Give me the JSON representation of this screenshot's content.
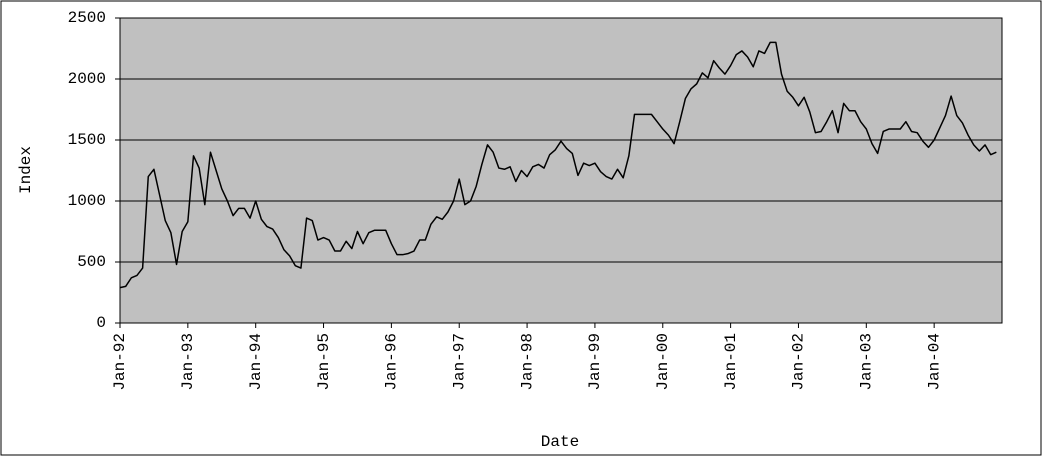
{
  "chart_data": {
    "type": "line",
    "x_label": "Date",
    "y_label": "Index",
    "categories": [
      "Jan-92",
      null,
      null,
      null,
      null,
      null,
      null,
      null,
      null,
      null,
      null,
      null,
      "Jan-93",
      null,
      null,
      null,
      null,
      null,
      null,
      null,
      null,
      null,
      null,
      null,
      "Jan-94",
      null,
      null,
      null,
      null,
      null,
      null,
      null,
      null,
      null,
      null,
      null,
      "Jan-95",
      null,
      null,
      null,
      null,
      null,
      null,
      null,
      null,
      null,
      null,
      null,
      "Jan-96",
      null,
      null,
      null,
      null,
      null,
      null,
      null,
      null,
      null,
      null,
      null,
      "Jan-97",
      null,
      null,
      null,
      null,
      null,
      null,
      null,
      null,
      null,
      null,
      null,
      "Jan-98",
      null,
      null,
      null,
      null,
      null,
      null,
      null,
      null,
      null,
      null,
      null,
      "Jan-99",
      null,
      null,
      null,
      null,
      null,
      null,
      null,
      null,
      null,
      null,
      null,
      "Jan-00",
      null,
      null,
      null,
      null,
      null,
      null,
      null,
      null,
      null,
      null,
      null,
      "Jan-01",
      null,
      null,
      null,
      null,
      null,
      null,
      null,
      null,
      null,
      null,
      null,
      "Jan-02",
      null,
      null,
      null,
      null,
      null,
      null,
      null,
      null,
      null,
      null,
      null,
      "Jan-03",
      null,
      null,
      null,
      null,
      null,
      null,
      null,
      null,
      null,
      null,
      null,
      "Jan-04",
      null,
      null,
      null,
      null,
      null,
      null,
      null,
      null,
      null,
      null,
      null
    ],
    "values": [
      290,
      300,
      370,
      390,
      450,
      1200,
      1260,
      1050,
      840,
      740,
      480,
      750,
      830,
      1370,
      1270,
      970,
      1400,
      1250,
      1100,
      1000,
      880,
      940,
      940,
      860,
      1000,
      850,
      790,
      770,
      700,
      600,
      550,
      470,
      450,
      860,
      840,
      680,
      700,
      680,
      590,
      590,
      670,
      610,
      750,
      650,
      740,
      760,
      760,
      760,
      650,
      560,
      560,
      570,
      590,
      680,
      680,
      810,
      870,
      850,
      910,
      1000,
      1180,
      970,
      1000,
      1120,
      1300,
      1460,
      1400,
      1270,
      1260,
      1280,
      1160,
      1250,
      1200,
      1280,
      1300,
      1270,
      1380,
      1420,
      1490,
      1430,
      1390,
      1210,
      1310,
      1290,
      1310,
      1240,
      1200,
      1180,
      1260,
      1190,
      1370,
      1710,
      1710,
      1710,
      1710,
      1650,
      1590,
      1540,
      1470,
      1650,
      1840,
      1920,
      1960,
      2050,
      2010,
      2150,
      2090,
      2040,
      2110,
      2200,
      2230,
      2180,
      2100,
      2230,
      2210,
      2300,
      2300,
      2040,
      1900,
      1850,
      1780,
      1850,
      1730,
      1560,
      1570,
      1650,
      1740,
      1560,
      1800,
      1740,
      1740,
      1650,
      1590,
      1470,
      1390,
      1570,
      1590,
      1590,
      1590,
      1650,
      1570,
      1560,
      1490,
      1440,
      1500,
      1600,
      1700,
      1860,
      1700,
      1640,
      1540,
      1460,
      1410,
      1460,
      1380,
      1400
    ],
    "color": "#000000",
    "plot_background": "#c0c0c0",
    "ylim": [
      0,
      2500
    ],
    "yticks": [
      0,
      500,
      1000,
      1500,
      2000,
      2500
    ],
    "grid": true
  }
}
